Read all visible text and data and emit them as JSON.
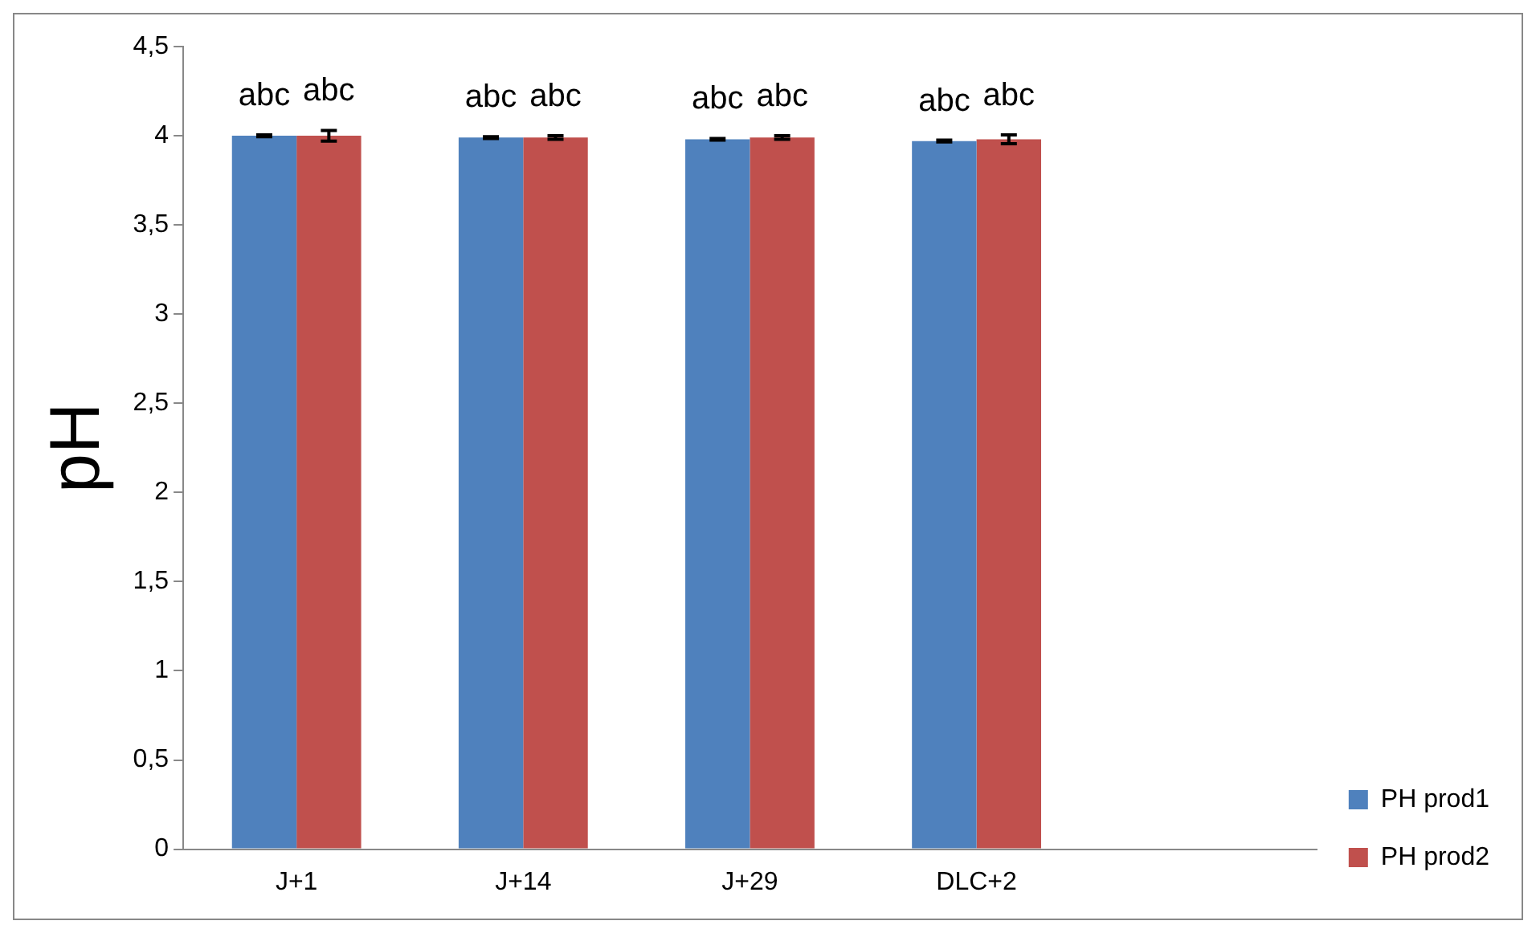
{
  "chart_data": {
    "type": "bar",
    "ylabel": "pH",
    "categories": [
      "J+1",
      "J+14",
      "J+29",
      "DLC+2",
      null
    ],
    "series": [
      {
        "name": "PH prod1",
        "color": "#4f81bd",
        "values": [
          4.0,
          3.99,
          3.98,
          3.97,
          null
        ],
        "errors": [
          0.005,
          0.005,
          0.005,
          0.005,
          null
        ]
      },
      {
        "name": "PH prod2",
        "color": "#c0504d",
        "values": [
          4.0,
          3.99,
          3.99,
          3.98,
          null
        ],
        "errors": [
          0.03,
          0.01,
          0.01,
          0.025,
          null
        ]
      }
    ],
    "ylim": [
      0,
      4.5
    ],
    "yticks": [
      {
        "value": 0,
        "label": "0"
      },
      {
        "value": 0.5,
        "label": "0,5"
      },
      {
        "value": 1,
        "label": "1"
      },
      {
        "value": 1.5,
        "label": "1,5"
      },
      {
        "value": 2,
        "label": "2"
      },
      {
        "value": 2.5,
        "label": "2,5"
      },
      {
        "value": 3,
        "label": "3"
      },
      {
        "value": 3.5,
        "label": "3,5"
      },
      {
        "value": 4,
        "label": "4"
      },
      {
        "value": 4.5,
        "label": "4,5"
      }
    ],
    "annotations": [
      "abc",
      "abc",
      "abc",
      "abc",
      "abc",
      "abc",
      "abc",
      "abc"
    ],
    "grid": false,
    "legend": "right"
  }
}
